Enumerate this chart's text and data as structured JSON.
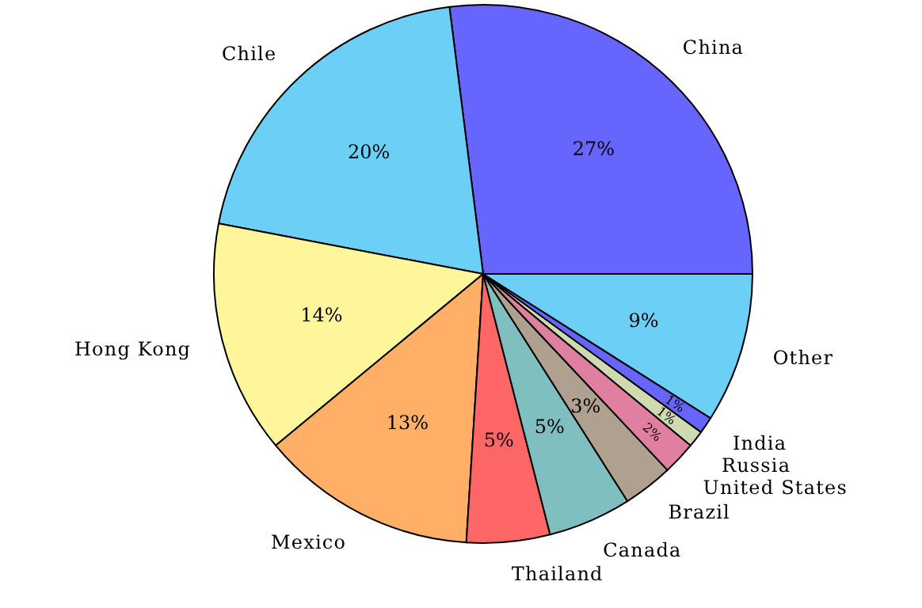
{
  "chart_data": {
    "type": "pie",
    "categories": [
      "China",
      "Chile",
      "Hong Kong",
      "Mexico",
      "Thailand",
      "Canada",
      "Brazil",
      "United States",
      "Russia",
      "India",
      "Other"
    ],
    "values": [
      27,
      20,
      14,
      13,
      5,
      5,
      3,
      2,
      1,
      1,
      9
    ],
    "colors": [
      "#6666ff",
      "#6ccff6",
      "#fff59a",
      "#ffb066",
      "#ff6666",
      "#7fbfbf",
      "#b0a090",
      "#e07fa0",
      "#d0dab0",
      "#6666ff",
      "#6ccff6"
    ],
    "value_labels": [
      "27%",
      "20%",
      "14%",
      "13%",
      "5%",
      "5%",
      "3%",
      "2%",
      "1%",
      "1%",
      "9%"
    ]
  }
}
